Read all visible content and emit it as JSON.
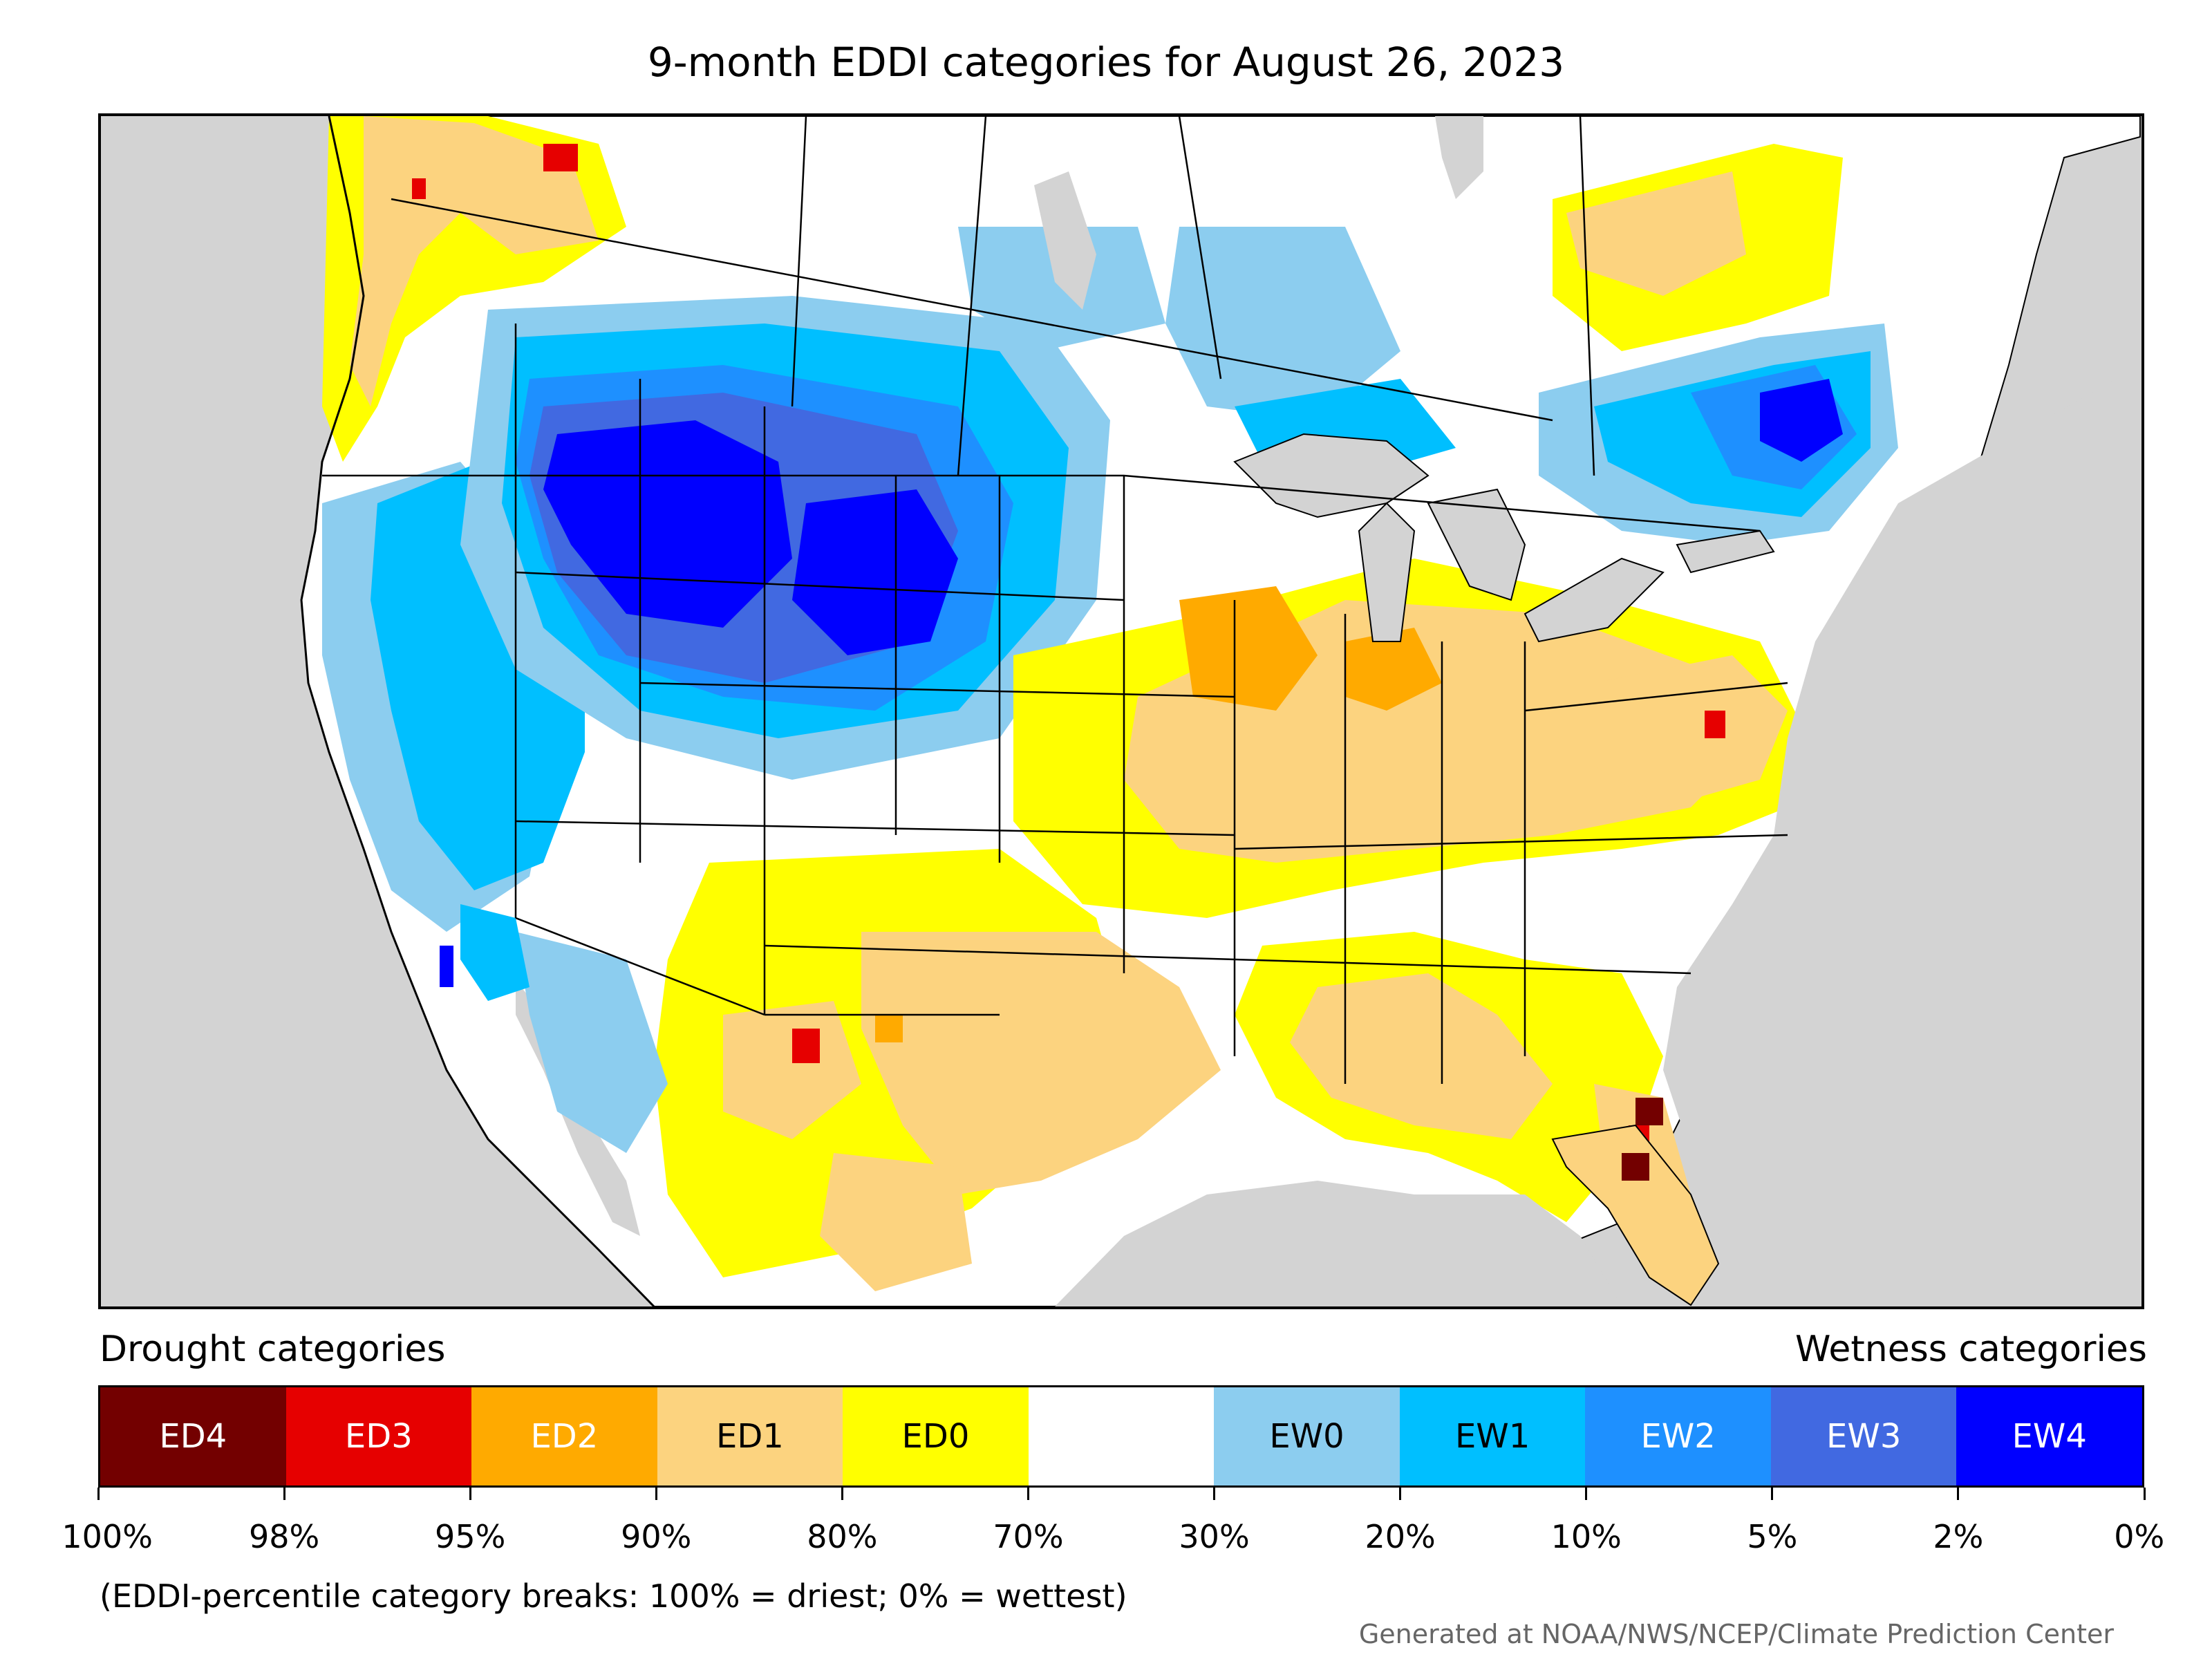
{
  "title": "9-month EDDI categories for August 26, 2023",
  "legend": {
    "drought_heading": "Drought categories",
    "wetness_heading": "Wetness categories",
    "categories": [
      {
        "label": "ED4",
        "color": "#730000",
        "text_color": "#ffffff"
      },
      {
        "label": "ED3",
        "color": "#e60000",
        "text_color": "#ffffff"
      },
      {
        "label": "ED2",
        "color": "#ffaa00",
        "text_color": "#ffffff"
      },
      {
        "label": "ED1",
        "color": "#fcd37f",
        "text_color": "#000000"
      },
      {
        "label": "ED0",
        "color": "#ffff00",
        "text_color": "#000000"
      },
      {
        "label": "",
        "color": "#ffffff",
        "text_color": "#000000"
      },
      {
        "label": "EW0",
        "color": "#8ccdef",
        "text_color": "#000000"
      },
      {
        "label": "EW1",
        "color": "#00bfff",
        "text_color": "#000000"
      },
      {
        "label": "EW2",
        "color": "#1e90ff",
        "text_color": "#ffffff"
      },
      {
        "label": "EW3",
        "color": "#4169e1",
        "text_color": "#ffffff"
      },
      {
        "label": "EW4",
        "color": "#0000ff",
        "text_color": "#ffffff"
      }
    ],
    "breaks": [
      "100%",
      "98%",
      "95%",
      "90%",
      "80%",
      "70%",
      "30%",
      "20%",
      "10%",
      "5%",
      "2%",
      "0%"
    ],
    "note": "(EDDI-percentile category breaks: 100% = driest; 0% = wettest)"
  },
  "credit": "Generated at NOAA/NWS/NCEP/Climate Prediction Center",
  "colors": {
    "background": "#d3d3d3",
    "land": "#ffffff",
    "boundary": "#000000"
  }
}
